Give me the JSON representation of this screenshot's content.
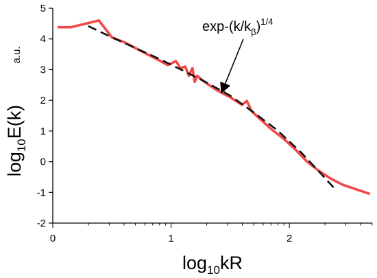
{
  "chart_data": {
    "type": "line",
    "title": "",
    "xlabel": {
      "main": "log",
      "sub": "10",
      "tail": "kR"
    },
    "ylabel": {
      "main": "log",
      "sub": "10",
      "tail": "E(k)",
      "unit": "a.u."
    },
    "xlim": [
      0,
      2.7
    ],
    "ylim": [
      -2,
      5
    ],
    "x_ticks": [
      0,
      1,
      2
    ],
    "x_tick_labels": [
      "0",
      "1",
      "2"
    ],
    "y_ticks": [
      -2,
      -1,
      0,
      1,
      2,
      3,
      4,
      5
    ],
    "y_tick_labels": [
      "-2",
      "-1",
      "0",
      "1",
      "2",
      "3",
      "4",
      "5"
    ],
    "grid": false,
    "series": [
      {
        "color": "#f04848",
        "style": "solid",
        "x": [
          0.04,
          0.15,
          0.39,
          0.5,
          0.6,
          0.7,
          0.8,
          0.9,
          0.97,
          1.0,
          1.04,
          1.08,
          1.12,
          1.15,
          1.18,
          1.2,
          1.22,
          1.25,
          1.3,
          1.4,
          1.5,
          1.6,
          1.64,
          1.68,
          1.75,
          1.85,
          1.95,
          2.05,
          2.15,
          2.25,
          2.35,
          2.45,
          2.55,
          2.68
        ],
        "y": [
          4.38,
          4.38,
          4.6,
          4.05,
          3.9,
          3.7,
          3.5,
          3.3,
          3.15,
          3.2,
          3.28,
          3.05,
          3.1,
          2.8,
          3.05,
          2.6,
          2.8,
          2.7,
          2.55,
          2.3,
          2.1,
          1.85,
          1.98,
          1.65,
          1.4,
          1.05,
          0.75,
          0.4,
          0.0,
          -0.3,
          -0.55,
          -0.75,
          -0.88,
          -1.05
        ]
      },
      {
        "color": "#111111",
        "style": "dashed",
        "x": [
          0.3,
          0.5,
          0.7,
          0.9,
          1.1,
          1.3,
          1.5,
          1.7,
          1.9,
          2.1,
          2.25,
          2.4
        ],
        "y": [
          4.42,
          4.05,
          3.7,
          3.35,
          2.97,
          2.58,
          2.15,
          1.6,
          1.02,
          0.3,
          -0.32,
          -0.95
        ]
      }
    ],
    "annotation": {
      "prefix": "exp-(k/k",
      "sub": "β",
      "suffix": ")",
      "sup": "1/4",
      "arrow_to": [
        1.43,
        2.28
      ]
    }
  },
  "colors": {
    "model_line": "#f04848",
    "fit_line": "#111111"
  }
}
